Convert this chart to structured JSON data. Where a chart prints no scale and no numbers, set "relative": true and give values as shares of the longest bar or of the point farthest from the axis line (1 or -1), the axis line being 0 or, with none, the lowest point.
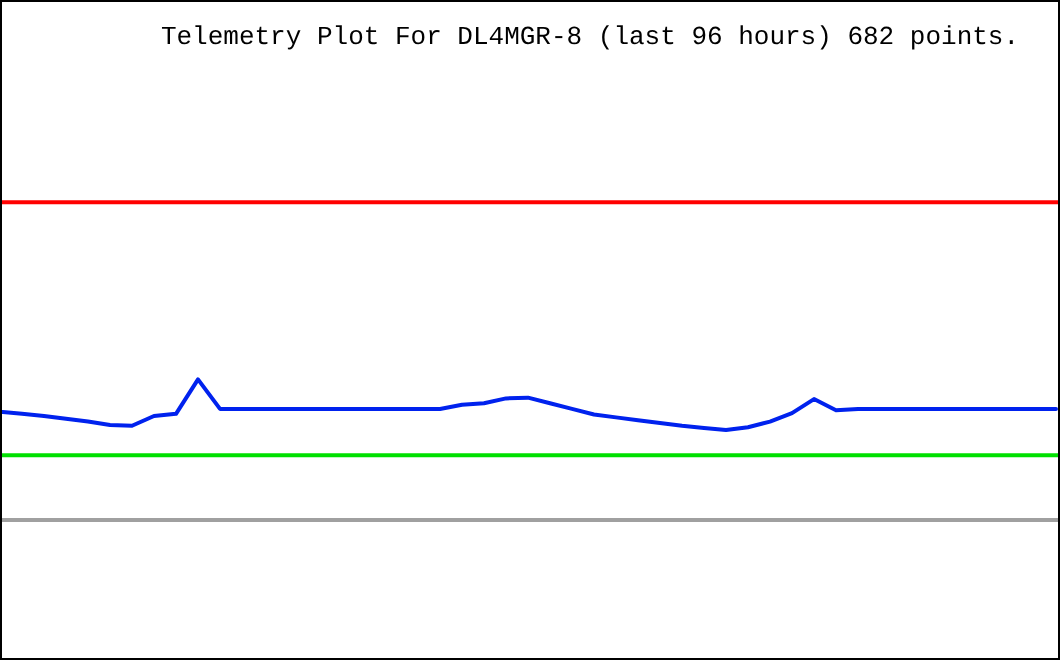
{
  "chart_data": {
    "type": "line",
    "title": "Telemetry Plot For DL4MGR-8 (last 96 hours) 682 points.",
    "relative": true,
    "marker": "none",
    "line_style": "solid",
    "categories": [
      null,
      null,
      null,
      null,
      null,
      null,
      null,
      null,
      null,
      null,
      null,
      null,
      null,
      null,
      null,
      null,
      null,
      null,
      null,
      null,
      null,
      null,
      null,
      null,
      null,
      null,
      null,
      null,
      null,
      null,
      null,
      null,
      null,
      null,
      null,
      null,
      null,
      null,
      null,
      null,
      null,
      null,
      null,
      null,
      null,
      null,
      null,
      null,
      null
    ],
    "series": [
      {
        "color": "#0022ee",
        "values": [
          0.77,
          0.755,
          0.74,
          0.72,
          0.7,
          0.675,
          0.67,
          0.74,
          0.755,
          1.0,
          0.79,
          0.79,
          0.79,
          0.79,
          0.79,
          0.79,
          0.79,
          0.79,
          0.79,
          0.79,
          0.79,
          0.82,
          0.83,
          0.865,
          0.87,
          0.83,
          0.79,
          0.75,
          0.73,
          0.71,
          0.69,
          0.67,
          0.655,
          0.64,
          0.66,
          0.7,
          0.76,
          0.86,
          0.78,
          0.79,
          0.79,
          0.79,
          0.79,
          0.79,
          0.79,
          0.79,
          0.79,
          0.79,
          0.79
        ]
      }
    ],
    "ref_lines": [
      {
        "axis": "y",
        "value": 2.26,
        "color": "#ff0000"
      },
      {
        "axis": "y",
        "value": 0.46,
        "color": "#00e000"
      },
      {
        "axis": "y",
        "value": 0,
        "color": "#a0a0a0"
      }
    ]
  }
}
